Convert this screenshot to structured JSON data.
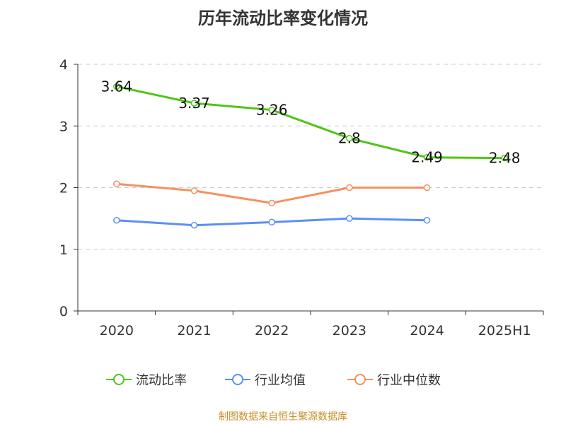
{
  "title": "历年流动比率变化情况",
  "source": "制图数据来自恒生聚源数据库",
  "chart_data": {
    "type": "line",
    "title": "历年流动比率变化情况",
    "categories": [
      "2020",
      "2021",
      "2022",
      "2023",
      "2024",
      "2025H1"
    ],
    "ylim": [
      0,
      4
    ],
    "yticks": [
      "0",
      "1",
      "2",
      "3",
      "4"
    ],
    "grid": true,
    "legend_position": "bottom",
    "series": [
      {
        "name": "流动比率",
        "color": "#52c41a",
        "values": [
          3.64,
          3.37,
          3.26,
          2.8,
          2.49,
          2.48
        ],
        "labels": [
          "3.64",
          "3.37",
          "3.26",
          "2.8",
          "2.49",
          "2.48"
        ]
      },
      {
        "name": "行业均值",
        "color": "#5b8ff9",
        "values": [
          1.47,
          1.39,
          1.44,
          1.5,
          1.47,
          null
        ]
      },
      {
        "name": "行业中位数",
        "color": "#f6915e",
        "values": [
          2.06,
          1.95,
          1.75,
          2.0,
          2.0,
          null
        ]
      }
    ]
  }
}
